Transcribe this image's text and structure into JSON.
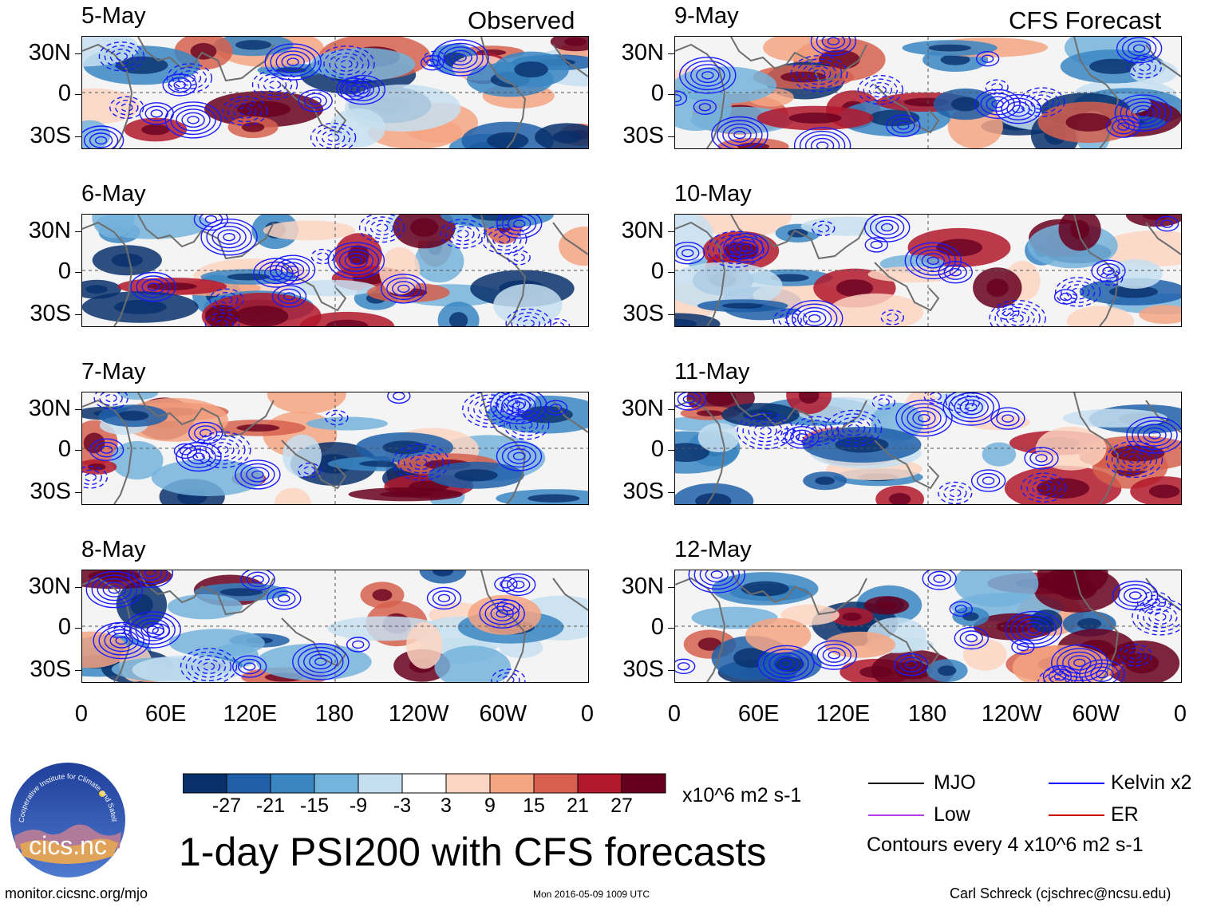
{
  "headers": {
    "left": "Observed",
    "right": "CFS Forecast"
  },
  "panels": {
    "observed": [
      {
        "date": "5-May",
        "seed": 1
      },
      {
        "date": "6-May",
        "seed": 2
      },
      {
        "date": "7-May",
        "seed": 3
      },
      {
        "date": "8-May",
        "seed": 4
      }
    ],
    "forecast": [
      {
        "date": "9-May",
        "seed": 5
      },
      {
        "date": "10-May",
        "seed": 6
      },
      {
        "date": "11-May",
        "seed": 7
      },
      {
        "date": "12-May",
        "seed": 8
      }
    ]
  },
  "lat_labels": [
    "30N",
    "0",
    "30S"
  ],
  "lon_labels": [
    "0",
    "60E",
    "120E",
    "180",
    "120W",
    "60W",
    "0"
  ],
  "colorbar": {
    "ticks": [
      "-27",
      "-21",
      "-15",
      "-9",
      "-3",
      "3",
      "9",
      "15",
      "21",
      "27"
    ],
    "colors": [
      "#08306b",
      "#1f5fa8",
      "#3a86c3",
      "#74b3dc",
      "#c6dff0",
      "#ffffff",
      "#fcd5c2",
      "#f4a582",
      "#d6604d",
      "#b2182b",
      "#67001f"
    ],
    "units": "x10^6 m2 s-1"
  },
  "title": "1-day PSI200 with CFS forecasts",
  "legend": {
    "items": [
      {
        "label": "MJO",
        "color": "#000000"
      },
      {
        "label": "Kelvin x2",
        "color": "#0000ff"
      },
      {
        "label": "Low",
        "color": "#b040e0"
      },
      {
        "label": "ER",
        "color": "#cc0000"
      }
    ],
    "note": "Contours every 4 x10^6 m2 s-1"
  },
  "logo": {
    "text": "cics.nc",
    "arc_text": "Cooperative Institute for Climate and Satellites"
  },
  "footer": {
    "url": "monitor.cicsnc.org/mjo",
    "timestamp": "Mon 2016-05-09 1009 UTC",
    "author": "Carl Schreck (cjschrec@ncsu.edu)"
  },
  "chart_data": {
    "type": "heatmap",
    "variable": "PSI200 anomaly",
    "units": "x10^6 m2 s-1",
    "color_levels": [
      -27,
      -21,
      -15,
      -9,
      -3,
      3,
      9,
      15,
      21,
      27
    ],
    "contour_interval": 4,
    "lat_range": [
      -40,
      40
    ],
    "lon_range": [
      0,
      360
    ],
    "lat_ticks": [
      "30N",
      "0",
      "30S"
    ],
    "lon_ticks": [
      "0",
      "60E",
      "120E",
      "180",
      "120W",
      "60W",
      "0"
    ],
    "observed_dates": [
      "5-May",
      "6-May",
      "7-May",
      "8-May"
    ],
    "forecast_dates": [
      "9-May",
      "10-May",
      "11-May",
      "12-May"
    ]
  }
}
